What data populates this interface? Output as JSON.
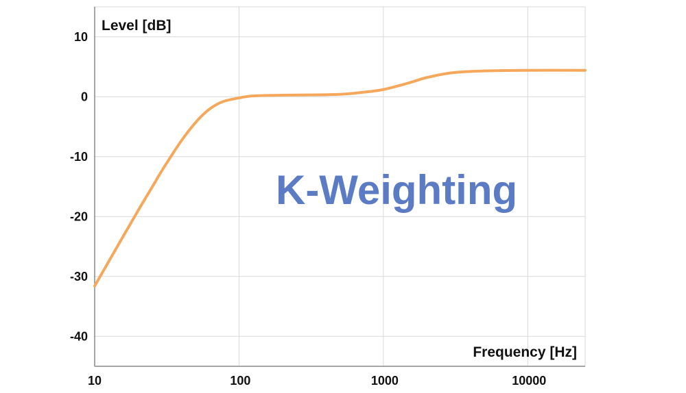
{
  "chart_data": {
    "type": "line",
    "title": "K-Weighting",
    "xlabel": "Frequency [Hz]",
    "ylabel": "Level [dB]",
    "x_scale": "log",
    "xlim": [
      10,
      25000
    ],
    "ylim": [
      -45,
      15
    ],
    "x_ticks": [
      10,
      100,
      1000,
      10000
    ],
    "x_tick_labels": [
      "10",
      "100",
      "1000",
      "10000"
    ],
    "y_ticks": [
      10,
      0,
      -10,
      -20,
      -30,
      -40
    ],
    "y_tick_labels": [
      "10",
      "0",
      "-10",
      "-20",
      "-30",
      "-40"
    ],
    "grid": true,
    "colors": {
      "line": "#F5A85B",
      "title": "#5B7BC4",
      "grid": "#D9D9D9",
      "axis": "#888888"
    },
    "series": [
      {
        "x": [
          10,
          15,
          20,
          25,
          30,
          40,
          50,
          60,
          70,
          80,
          100,
          120,
          150,
          200,
          300,
          500,
          700,
          1000,
          1500,
          2000,
          3000,
          5000,
          10000,
          25000
        ],
        "y": [
          -31.6,
          -24.2,
          -19.0,
          -15.1,
          -11.9,
          -7.3,
          -4.3,
          -2.4,
          -1.3,
          -0.7,
          -0.2,
          0.1,
          0.2,
          0.25,
          0.3,
          0.4,
          0.7,
          1.2,
          2.3,
          3.2,
          4.0,
          4.3,
          4.4,
          4.4
        ]
      }
    ]
  }
}
